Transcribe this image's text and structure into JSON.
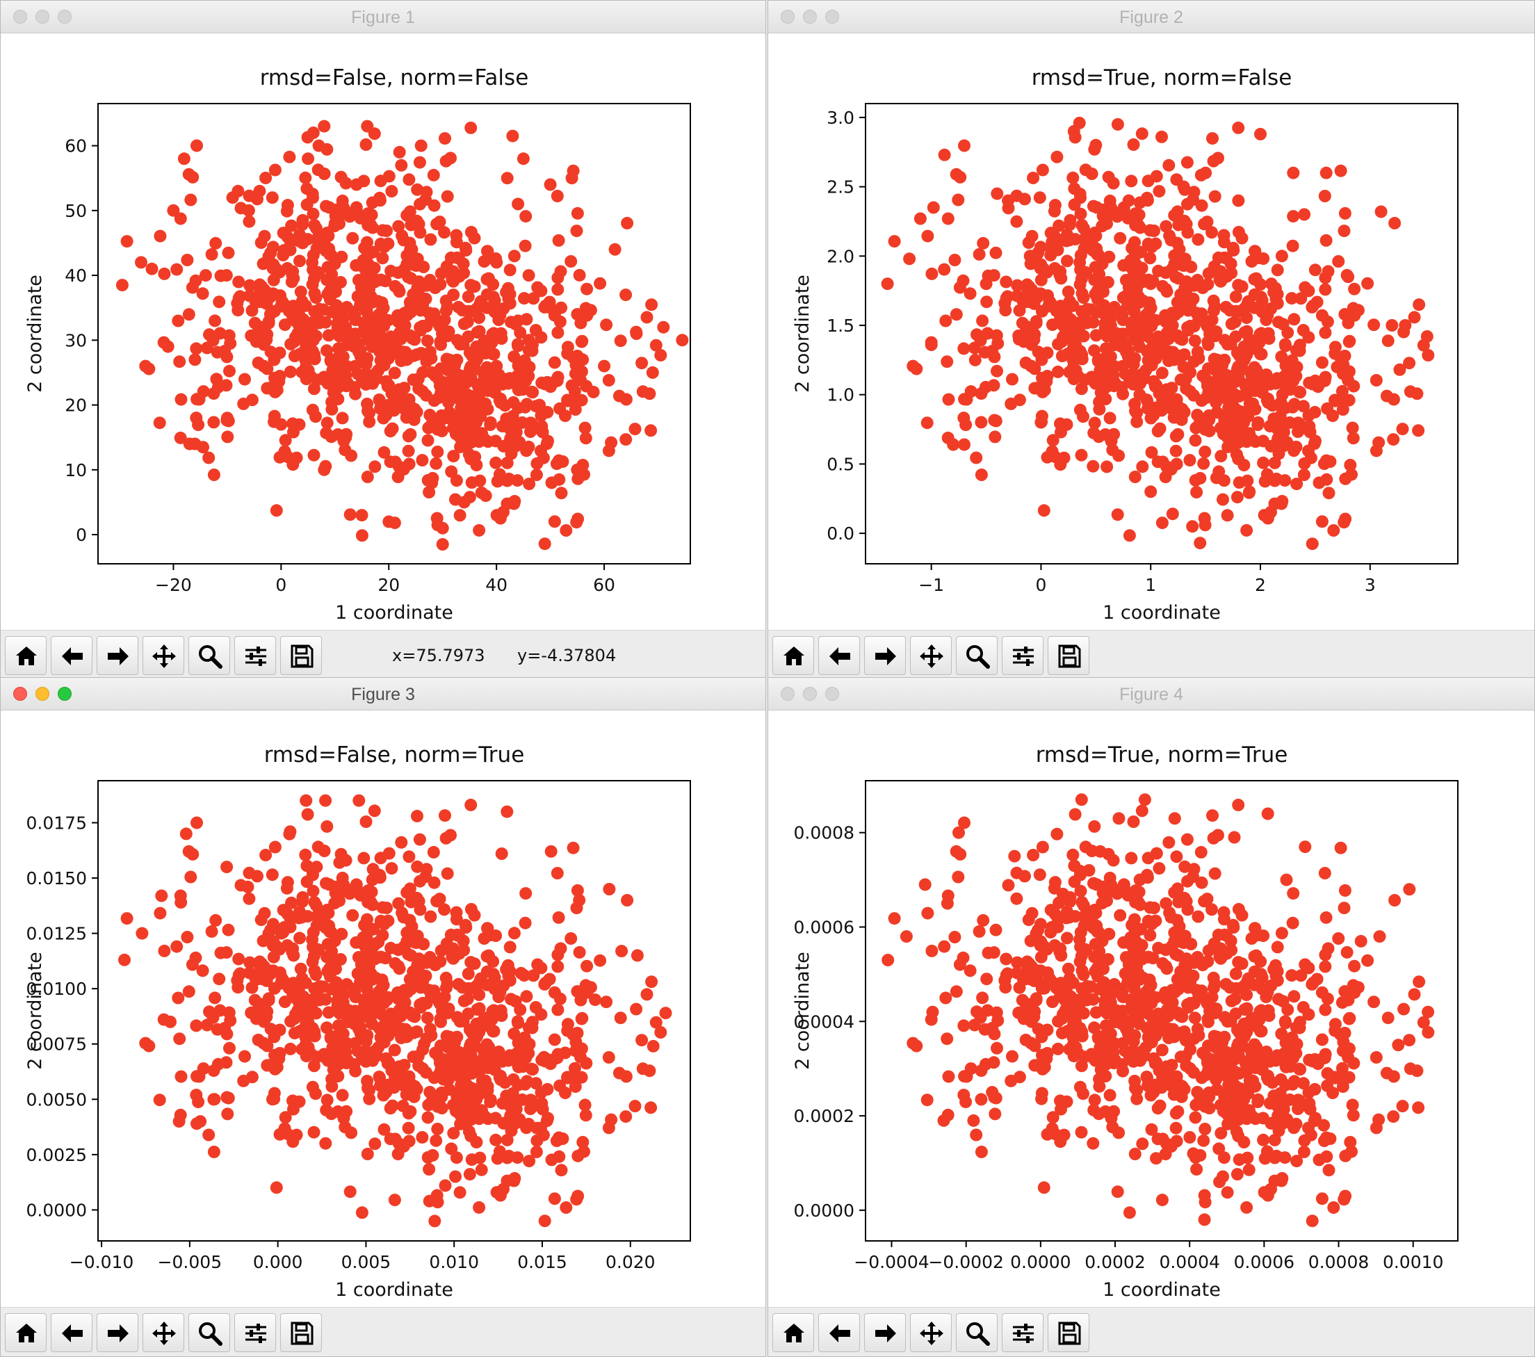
{
  "colors": {
    "marker": "#f03c26",
    "axis": "#000000",
    "text": "#111111"
  },
  "toolbar_icons": [
    "home-icon",
    "back-arrow-icon",
    "forward-arrow-icon",
    "pan-move-icon",
    "zoom-magnifier-icon",
    "configure-subplots-icon",
    "save-floppy-icon"
  ],
  "windows": [
    {
      "title": "Figure 1",
      "active": false,
      "coords": {
        "x": "x=75.7973",
        "y": "y=-4.37804"
      }
    },
    {
      "title": "Figure 2",
      "active": false,
      "coords": {
        "x": "",
        "y": ""
      }
    },
    {
      "title": "Figure 3",
      "active": true,
      "coords": {
        "x": "",
        "y": ""
      }
    },
    {
      "title": "Figure 4",
      "active": false,
      "coords": {
        "x": "",
        "y": ""
      }
    }
  ],
  "chart_data": [
    {
      "type": "scatter",
      "title": "rmsd=False, norm=False",
      "xlabel": "1 coordinate",
      "ylabel": "2 coordinate",
      "xlim": [
        -34,
        76
      ],
      "ylim": [
        -4.5,
        66.5
      ],
      "xticks": [
        -20,
        0,
        20,
        40,
        60
      ],
      "xtick_labels": [
        "−20",
        "0",
        "20",
        "40",
        "60"
      ],
      "yticks": [
        0,
        10,
        20,
        30,
        40,
        50,
        60
      ],
      "ytick_labels": [
        "0",
        "10",
        "20",
        "30",
        "40",
        "50",
        "60"
      ],
      "grid": false,
      "legend": "none",
      "n_points": 1000,
      "x": [
        -29.5,
        -26,
        -24,
        -21,
        -20,
        -18,
        -17,
        -16,
        -16,
        -14.5,
        -14,
        -12,
        -10,
        -9,
        -8,
        -6,
        -4,
        -2,
        0,
        2,
        4,
        5,
        6,
        7,
        8,
        8,
        10,
        12,
        14,
        15,
        16,
        18,
        20,
        22,
        24,
        26,
        28,
        30,
        30,
        32,
        34,
        36,
        38,
        40,
        42,
        43,
        44,
        45,
        46,
        48,
        50,
        52,
        54,
        55,
        56,
        58,
        60,
        62,
        64,
        66,
        69,
        71,
        74.5,
        6,
        12,
        18,
        24,
        28,
        33,
        38,
        42,
        46,
        50,
        54,
        20,
        26,
        31,
        36,
        40,
        44
      ],
      "y": [
        38.5,
        42,
        41,
        29,
        50,
        58,
        14,
        14,
        27,
        13.5,
        40,
        24,
        18,
        52,
        53,
        50,
        53,
        34,
        17,
        39,
        45,
        58,
        62,
        60,
        63,
        10,
        48,
        15,
        54,
        3,
        63,
        30,
        2,
        59,
        44,
        60,
        8,
        -1.5,
        1,
        37,
        5,
        12,
        6,
        42,
        55,
        61.5,
        51,
        58,
        40,
        20,
        54,
        35,
        55,
        10,
        27,
        22,
        26,
        44,
        37,
        31,
        25,
        32,
        30,
        30,
        32,
        36,
        35,
        25,
        22,
        28,
        24,
        30,
        35,
        23,
        20,
        28,
        18,
        20,
        26,
        33
      ]
    },
    {
      "type": "scatter",
      "title": "rmsd=True, norm=False",
      "xlabel": "1 coordinate",
      "ylabel": "2 coordinate",
      "xlim": [
        -1.6,
        3.8
      ],
      "ylim": [
        -0.22,
        3.1
      ],
      "xticks": [
        -1,
        0,
        1,
        2,
        3
      ],
      "xtick_labels": [
        "−1",
        "0",
        "1",
        "2",
        "3"
      ],
      "yticks": [
        0,
        0.5,
        1,
        1.5,
        2,
        2.5,
        3
      ],
      "ytick_labels": [
        "0.0",
        "0.5",
        "1.0",
        "1.5",
        "2.0",
        "2.5",
        "3.0"
      ],
      "grid": false,
      "legend": "none",
      "n_points": 1000,
      "x": [
        -1.4,
        -1.2,
        -1.1,
        -1.0,
        -0.98,
        -0.88,
        -0.8,
        -0.7,
        -0.6,
        -0.5,
        -0.4,
        -0.3,
        -0.2,
        -0.1,
        0,
        0.1,
        0.2,
        0.3,
        0.35,
        0.4,
        0.5,
        0.6,
        0.7,
        0.75,
        0.8,
        0.9,
        1.0,
        1.1,
        1.2,
        1.3,
        1.38,
        1.45,
        1.5,
        1.6,
        1.7,
        1.8,
        1.9,
        2.0,
        2.1,
        2.2,
        2.3,
        2.4,
        2.5,
        2.6,
        2.7,
        2.8,
        3.1,
        3.2,
        3.27,
        3.32,
        3.52,
        0.5,
        0.8,
        1.0,
        1.3,
        1.6,
        1.9,
        2.2,
        2.5
      ],
      "y": [
        1.8,
        1.98,
        2.27,
        1.36,
        2.35,
        2.73,
        0.64,
        0.64,
        1.25,
        1.8,
        2.45,
        2.4,
        1.4,
        2.0,
        0.8,
        2.1,
        1.5,
        2.9,
        2.96,
        1.6,
        2.8,
        0.48,
        2.95,
        1.7,
        2.4,
        1.0,
        0.3,
        2.86,
        0.14,
        2.5,
        0.05,
        -0.07,
        2.6,
        0.4,
        1.1,
        2.4,
        0.3,
        2.88,
        1.8,
        0.9,
        2.6,
        2.3,
        1.9,
        2.6,
        1.2,
        1.85,
        2.32,
        1.5,
        1.18,
        1.5,
        1.42,
        1.6,
        1.3,
        1.8,
        1.2,
        1.1,
        1.4,
        1.0,
        1.1
      ]
    },
    {
      "type": "scatter",
      "title": "rmsd=False, norm=True",
      "xlabel": "1 coordinate",
      "ylabel": "2 coordinate",
      "xlim": [
        -0.0102,
        0.0234
      ],
      "ylim": [
        -0.0014,
        0.0194
      ],
      "xticks": [
        -0.01,
        -0.005,
        0,
        0.005,
        0.01,
        0.015,
        0.02
      ],
      "xtick_labels": [
        "−0.010",
        "−0.005",
        "0.000",
        "0.005",
        "0.010",
        "0.015",
        "0.020"
      ],
      "yticks": [
        0,
        0.0025,
        0.005,
        0.0075,
        0.01,
        0.0125,
        0.015,
        0.0175
      ],
      "ytick_labels": [
        "0.0000",
        "0.0025",
        "0.0050",
        "0.0075",
        "0.0100",
        "0.0125",
        "0.0150",
        "0.0175"
      ],
      "grid": false,
      "legend": "none",
      "n_points": 1000,
      "x": [
        -0.0087,
        -0.0077,
        -0.0066,
        -0.0061,
        -0.0056,
        -0.0052,
        -0.0044,
        -0.0036,
        -0.0029,
        -0.0017,
        -0.0003,
        0.0007,
        0.0016,
        0.0022,
        0.0027,
        0.0035,
        0.0043,
        0.0046,
        0.0054,
        0.0062,
        0.0071,
        0.0079,
        0.0086,
        0.0089,
        0.0095,
        0.0102,
        0.011,
        0.0119,
        0.0127,
        0.013,
        0.0138,
        0.0147,
        0.0155,
        0.0163,
        0.0171,
        0.018,
        0.0188,
        0.0195,
        0.0204,
        0.0213,
        0.022,
        -0.0046,
        -0.0055,
        0.0002,
        0.0044,
        0.0083,
        0.0112,
        0.0151,
        0.0094,
        0.0057
      ],
      "y": [
        0.0113,
        0.0125,
        0.0142,
        0.0085,
        0.004,
        0.017,
        0.004,
        0.005,
        0.0155,
        0.0146,
        0.005,
        0.0171,
        0.0185,
        0.0155,
        0.0185,
        0.0157,
        0.0085,
        0.0185,
        0.0154,
        0.0095,
        0.0047,
        0.0178,
        0.0004,
        -0.0005,
        0.0011,
        0.0124,
        0.0065,
        0.0054,
        0.0161,
        0.018,
        0.0107,
        0.0037,
        0.0162,
        0.0071,
        0.014,
        0.0095,
        0.0145,
        0.0117,
        0.0115,
        0.0074,
        0.0089,
        0.0039,
        0.0139,
        0.0125,
        0.0088,
        0.0075,
        0.0082,
        0.0069,
        0.0059,
        0.0121
      ]
    },
    {
      "type": "scatter",
      "title": "rmsd=True, norm=True",
      "xlabel": "1 coordinate",
      "ylabel": "2 coordinate",
      "xlim": [
        -0.00047,
        0.00112
      ],
      "ylim": [
        -6.5e-05,
        0.00091
      ],
      "xticks": [
        -0.0004,
        -0.0002,
        0,
        0.0002,
        0.0004,
        0.0006,
        0.0008,
        0.001
      ],
      "xtick_labels": [
        "−0.0004",
        "−0.0002",
        "0.0000",
        "0.0002",
        "0.0004",
        "0.0006",
        "0.0008",
        "0.0010"
      ],
      "yticks": [
        0,
        0.0002,
        0.0004,
        0.0006,
        0.0008
      ],
      "ytick_labels": [
        "0.0000",
        "0.0002",
        "0.0004",
        "0.0006",
        "0.0008"
      ],
      "grid": false,
      "legend": "none",
      "n_points": 1000,
      "x": [
        -0.00041,
        -0.00036,
        -0.00031,
        -0.00029,
        -0.00026,
        -0.00022,
        -0.00018,
        -0.00013,
        -7e-05,
        0.0,
        6e-05,
        0.00011,
        0.00013,
        0.00016,
        0.00021,
        0.00026,
        0.00028,
        0.00031,
        0.00036,
        0.00041,
        0.00044,
        0.00048,
        0.00052,
        0.00057,
        0.00061,
        0.00066,
        0.00071,
        0.00076,
        0.00081,
        0.00086,
        0.00091,
        0.00096,
        0.00099,
        0.00104,
        -0.00025,
        1e-05,
        0.0002,
        0.00039,
        0.00058,
        0.00077
      ],
      "y": [
        0.00053,
        0.00058,
        0.00069,
        0.00042,
        0.00019,
        0.0008,
        0.00019,
        0.00025,
        0.00075,
        0.00048,
        0.00067,
        0.00087,
        0.00072,
        0.00076,
        0.00083,
        0.0004,
        0.00087,
        0.00011,
        0.00083,
        0.00012,
        -2e-05,
        6e-05,
        0.00079,
        0.00031,
        0.00084,
        0.0007,
        0.00077,
        0.00018,
        0.00044,
        0.00057,
        0.00058,
        0.00035,
        0.00068,
        0.00042,
        0.00065,
        0.00047,
        0.00041,
        0.00036,
        0.00033,
        0.00029
      ]
    }
  ]
}
